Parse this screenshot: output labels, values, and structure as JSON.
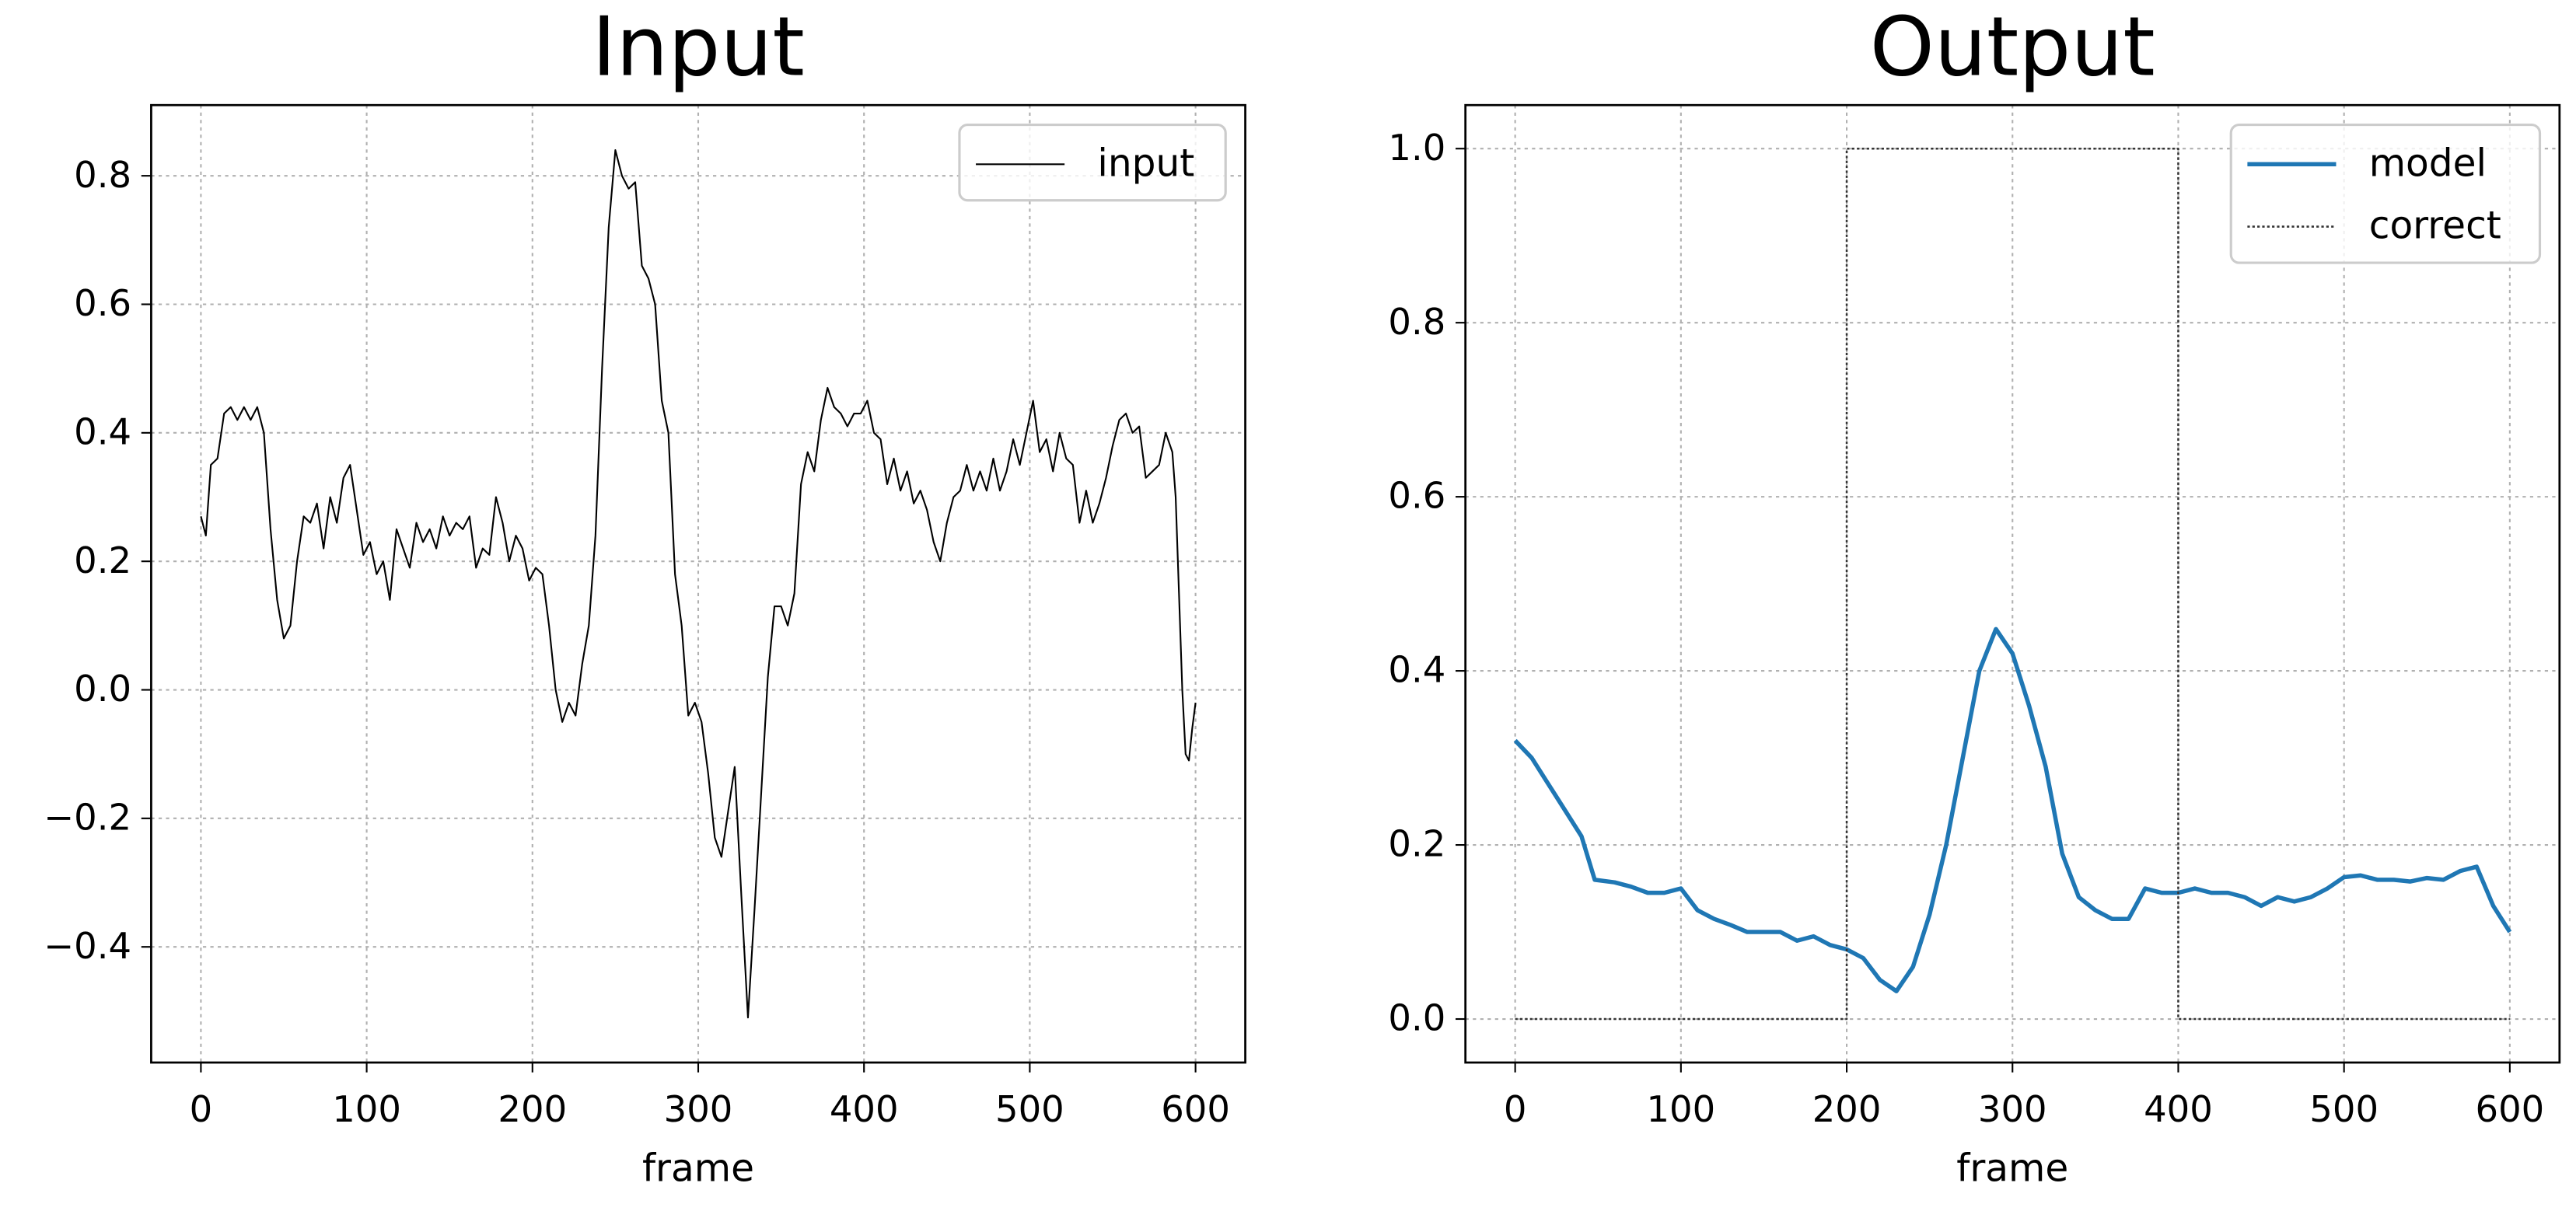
{
  "chart_data": [
    {
      "type": "line",
      "title": "Input",
      "xlabel": "frame",
      "xlim": [
        -30,
        630
      ],
      "ylim": [
        -0.58,
        0.91
      ],
      "xticks": [
        0,
        100,
        200,
        300,
        400,
        500,
        600
      ],
      "yticks": [
        {
          "value": -0.4,
          "label": "−0.4"
        },
        {
          "value": -0.2,
          "label": "−0.2"
        },
        {
          "value": 0,
          "label": "0.0"
        },
        0.2,
        0.4,
        0.6,
        0.8
      ],
      "grid": true,
      "legend": "upper right",
      "series": [
        {
          "name": "input",
          "color": "#000000",
          "style": "solid",
          "width": 1,
          "x": [
            0,
            3,
            6,
            10,
            14,
            18,
            22,
            26,
            30,
            34,
            38,
            42,
            46,
            50,
            54,
            58,
            62,
            66,
            70,
            74,
            78,
            82,
            86,
            90,
            94,
            98,
            102,
            106,
            110,
            114,
            118,
            122,
            126,
            130,
            134,
            138,
            142,
            146,
            150,
            154,
            158,
            162,
            166,
            170,
            174,
            178,
            182,
            186,
            190,
            194,
            198,
            202,
            206,
            210,
            214,
            218,
            222,
            226,
            230,
            234,
            238,
            242,
            246,
            250,
            254,
            258,
            262,
            266,
            270,
            274,
            278,
            282,
            286,
            290,
            294,
            298,
            302,
            306,
            310,
            314,
            318,
            322,
            326,
            330,
            334,
            338,
            342,
            346,
            350,
            354,
            358,
            362,
            366,
            370,
            374,
            378,
            382,
            386,
            390,
            394,
            398,
            402,
            406,
            410,
            414,
            418,
            422,
            426,
            430,
            434,
            438,
            442,
            446,
            450,
            454,
            458,
            462,
            466,
            470,
            474,
            478,
            482,
            486,
            490,
            494,
            498,
            502,
            506,
            510,
            514,
            518,
            522,
            526,
            530,
            534,
            538,
            542,
            546,
            550,
            554,
            558,
            562,
            566,
            570,
            574,
            578,
            582,
            586,
            588,
            590,
            592,
            594,
            596,
            598,
            600
          ],
          "values": [
            0.27,
            0.24,
            0.35,
            0.36,
            0.43,
            0.44,
            0.42,
            0.44,
            0.42,
            0.44,
            0.4,
            0.25,
            0.14,
            0.08,
            0.1,
            0.2,
            0.27,
            0.26,
            0.29,
            0.22,
            0.3,
            0.26,
            0.33,
            0.35,
            0.28,
            0.21,
            0.23,
            0.18,
            0.2,
            0.14,
            0.25,
            0.22,
            0.19,
            0.26,
            0.23,
            0.25,
            0.22,
            0.27,
            0.24,
            0.26,
            0.25,
            0.27,
            0.19,
            0.22,
            0.21,
            0.3,
            0.26,
            0.2,
            0.24,
            0.22,
            0.17,
            0.19,
            0.18,
            0.1,
            0.0,
            -0.05,
            -0.02,
            -0.04,
            0.04,
            0.1,
            0.24,
            0.5,
            0.72,
            0.84,
            0.8,
            0.78,
            0.79,
            0.66,
            0.64,
            0.6,
            0.45,
            0.4,
            0.18,
            0.1,
            -0.04,
            -0.02,
            -0.05,
            -0.13,
            -0.23,
            -0.26,
            -0.19,
            -0.12,
            -0.32,
            -0.51,
            -0.34,
            -0.16,
            0.02,
            0.13,
            0.13,
            0.1,
            0.15,
            0.32,
            0.37,
            0.34,
            0.42,
            0.47,
            0.44,
            0.43,
            0.41,
            0.43,
            0.43,
            0.45,
            0.4,
            0.39,
            0.32,
            0.36,
            0.31,
            0.34,
            0.29,
            0.31,
            0.28,
            0.23,
            0.2,
            0.26,
            0.3,
            0.31,
            0.35,
            0.31,
            0.34,
            0.31,
            0.36,
            0.31,
            0.34,
            0.39,
            0.35,
            0.4,
            0.45,
            0.37,
            0.39,
            0.34,
            0.4,
            0.36,
            0.35,
            0.26,
            0.31,
            0.26,
            0.29,
            0.33,
            0.38,
            0.42,
            0.43,
            0.4,
            0.41,
            0.33,
            0.34,
            0.35,
            0.4,
            0.37,
            0.3,
            0.15,
            0.0,
            -0.1,
            -0.11,
            -0.06,
            -0.02
          ]
        }
      ]
    },
    {
      "type": "line",
      "title": "Output",
      "xlabel": "frame",
      "xlim": [
        -30,
        630
      ],
      "ylim": [
        -0.05,
        1.05
      ],
      "xticks": [
        0,
        100,
        200,
        300,
        400,
        500,
        600
      ],
      "yticks": [
        {
          "value": 0,
          "label": "0.0"
        },
        0.2,
        0.4,
        0.6,
        0.8,
        {
          "value": 1,
          "label": "1.0"
        }
      ],
      "grid": true,
      "legend": "upper right",
      "series": [
        {
          "name": "model",
          "color": "#1f77b4",
          "style": "solid",
          "width": 2.6,
          "x": [
            0,
            10,
            20,
            30,
            40,
            48,
            60,
            70,
            80,
            90,
            100,
            110,
            120,
            130,
            140,
            150,
            160,
            170,
            180,
            190,
            200,
            210,
            220,
            230,
            240,
            250,
            260,
            270,
            280,
            290,
            300,
            310,
            320,
            330,
            340,
            350,
            360,
            370,
            380,
            390,
            400,
            410,
            420,
            430,
            440,
            450,
            460,
            470,
            480,
            490,
            500,
            510,
            520,
            530,
            540,
            550,
            560,
            570,
            580,
            590,
            600
          ],
          "values": [
            0.32,
            0.3,
            0.27,
            0.24,
            0.21,
            0.16,
            0.157,
            0.152,
            0.145,
            0.145,
            0.15,
            0.125,
            0.115,
            0.108,
            0.1,
            0.1,
            0.1,
            0.09,
            0.095,
            0.085,
            0.08,
            0.07,
            0.045,
            0.032,
            0.06,
            0.12,
            0.2,
            0.3,
            0.4,
            0.448,
            0.42,
            0.36,
            0.29,
            0.19,
            0.14,
            0.125,
            0.115,
            0.115,
            0.15,
            0.145,
            0.145,
            0.15,
            0.145,
            0.145,
            0.14,
            0.13,
            0.14,
            0.135,
            0.14,
            0.15,
            0.163,
            0.165,
            0.16,
            0.16,
            0.158,
            0.162,
            0.16,
            0.17,
            0.175,
            0.13,
            0.1
          ]
        },
        {
          "name": "correct",
          "color": "#333333",
          "style": "dotted",
          "width": 1.2,
          "x": [
            0,
            200,
            200,
            400,
            400,
            600
          ],
          "values": [
            0,
            0,
            1,
            1,
            0,
            0
          ]
        }
      ]
    }
  ]
}
